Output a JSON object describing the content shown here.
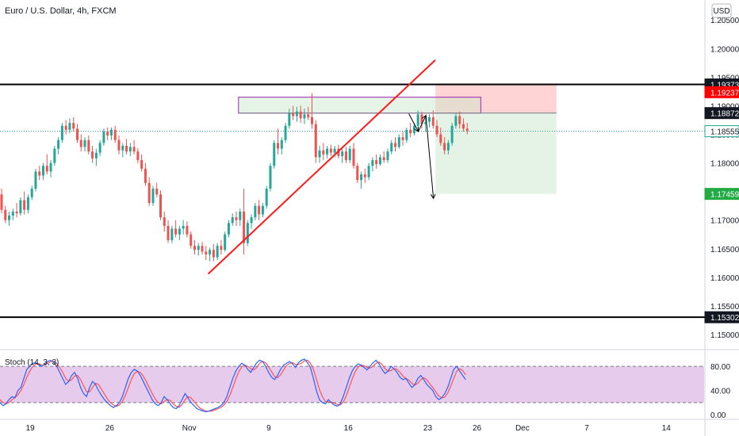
{
  "header": {
    "title": "Euro / U.S. Dollar, 4h, FXCM",
    "currency_button": "USD"
  },
  "chart_data": {
    "type": "candlestick",
    "symbol": "Euro / U.S. Dollar, 4h, FXCM",
    "price_axis": {
      "ylim": [
        1.1475,
        1.2085
      ],
      "ticks": [
        "1.20500",
        "1.20000",
        "1.19500",
        "1.19000",
        "1.18500",
        "1.18000",
        "1.17500",
        "1.17000",
        "1.16500",
        "1.16000",
        "1.15500",
        "1.15000"
      ],
      "tick_values": [
        1.205,
        1.2,
        1.195,
        1.19,
        1.185,
        1.18,
        1.175,
        1.17,
        1.165,
        1.16,
        1.155,
        1.15
      ]
    },
    "x_axis": {
      "ticks": [
        "19",
        "26",
        "Nov",
        "9",
        "16",
        "23",
        "26",
        "Dec",
        "7",
        "14"
      ],
      "tick_index": [
        8,
        29,
        50,
        71,
        92,
        113,
        126,
        138,
        155,
        176
      ],
      "xlim": [
        0,
        186
      ]
    },
    "candles": [
      [
        1.1745,
        1.1755,
        1.1712,
        1.1718
      ],
      [
        1.1718,
        1.1725,
        1.1695,
        1.17
      ],
      [
        1.17,
        1.1715,
        1.169,
        1.1708
      ],
      [
        1.1708,
        1.172,
        1.17,
        1.1715
      ],
      [
        1.1715,
        1.173,
        1.1705,
        1.1712
      ],
      [
        1.1712,
        1.174,
        1.1708,
        1.1735
      ],
      [
        1.1735,
        1.175,
        1.171,
        1.1718
      ],
      [
        1.1718,
        1.1745,
        1.1712,
        1.174
      ],
      [
        1.174,
        1.176,
        1.1735,
        1.1755
      ],
      [
        1.1755,
        1.179,
        1.175,
        1.1785
      ],
      [
        1.1785,
        1.1795,
        1.177,
        1.1778
      ],
      [
        1.1778,
        1.18,
        1.177,
        1.1795
      ],
      [
        1.1795,
        1.1815,
        1.178,
        1.1785
      ],
      [
        1.1785,
        1.1805,
        1.1775,
        1.18
      ],
      [
        1.18,
        1.183,
        1.1795,
        1.1825
      ],
      [
        1.1825,
        1.1845,
        1.1815,
        1.184
      ],
      [
        1.184,
        1.187,
        1.1835,
        1.1865
      ],
      [
        1.1865,
        1.1875,
        1.185,
        1.1858
      ],
      [
        1.1858,
        1.1878,
        1.1852,
        1.187
      ],
      [
        1.187,
        1.188,
        1.1855,
        1.186
      ],
      [
        1.186,
        1.1868,
        1.1835,
        1.184
      ],
      [
        1.184,
        1.185,
        1.182,
        1.1828
      ],
      [
        1.1828,
        1.1845,
        1.182,
        1.184
      ],
      [
        1.184,
        1.1848,
        1.1815,
        1.182
      ],
      [
        1.182,
        1.183,
        1.18,
        1.1808
      ],
      [
        1.1808,
        1.1825,
        1.1795,
        1.1818
      ],
      [
        1.1818,
        1.184,
        1.1812,
        1.1835
      ],
      [
        1.1835,
        1.186,
        1.183,
        1.1855
      ],
      [
        1.1855,
        1.1862,
        1.184,
        1.1848
      ],
      [
        1.1848,
        1.1862,
        1.184,
        1.1858
      ],
      [
        1.1858,
        1.1865,
        1.1835,
        1.184
      ],
      [
        1.184,
        1.1848,
        1.1815,
        1.1822
      ],
      [
        1.1822,
        1.1835,
        1.181,
        1.183
      ],
      [
        1.183,
        1.1842,
        1.1815,
        1.182
      ],
      [
        1.182,
        1.1835,
        1.1812,
        1.1828
      ],
      [
        1.1828,
        1.184,
        1.1815,
        1.182
      ],
      [
        1.182,
        1.1826,
        1.18,
        1.1805
      ],
      [
        1.1805,
        1.1815,
        1.1785,
        1.179
      ],
      [
        1.179,
        1.18,
        1.176,
        1.1765
      ],
      [
        1.1765,
        1.1775,
        1.1725,
        1.173
      ],
      [
        1.173,
        1.176,
        1.1725,
        1.1755
      ],
      [
        1.1755,
        1.1765,
        1.174,
        1.1745
      ],
      [
        1.1745,
        1.1752,
        1.17,
        1.1705
      ],
      [
        1.1705,
        1.1715,
        1.168,
        1.169
      ],
      [
        1.169,
        1.17,
        1.166,
        1.1665
      ],
      [
        1.1665,
        1.169,
        1.166,
        1.1685
      ],
      [
        1.1685,
        1.17,
        1.167,
        1.1675
      ],
      [
        1.1675,
        1.169,
        1.1665,
        1.1685
      ],
      [
        1.1685,
        1.17,
        1.1675,
        1.169
      ],
      [
        1.169,
        1.1698,
        1.167,
        1.1675
      ],
      [
        1.1675,
        1.168,
        1.165,
        1.1655
      ],
      [
        1.1655,
        1.1665,
        1.164,
        1.1648
      ],
      [
        1.1648,
        1.166,
        1.1638,
        1.1655
      ],
      [
        1.1655,
        1.1662,
        1.164,
        1.1645
      ],
      [
        1.1645,
        1.1655,
        1.163,
        1.164
      ],
      [
        1.164,
        1.1652,
        1.1628,
        1.1648
      ],
      [
        1.1648,
        1.1658,
        1.1628,
        1.1635
      ],
      [
        1.1635,
        1.166,
        1.163,
        1.1655
      ],
      [
        1.1655,
        1.1665,
        1.164,
        1.1648
      ],
      [
        1.1648,
        1.168,
        1.1645,
        1.1675
      ],
      [
        1.1675,
        1.17,
        1.167,
        1.1695
      ],
      [
        1.1695,
        1.1712,
        1.169,
        1.1705
      ],
      [
        1.1705,
        1.1715,
        1.169,
        1.17
      ],
      [
        1.17,
        1.172,
        1.169,
        1.1715
      ],
      [
        1.1715,
        1.1755,
        1.164,
        1.166
      ],
      [
        1.166,
        1.17,
        1.1655,
        1.1695
      ],
      [
        1.1695,
        1.171,
        1.1685,
        1.1705
      ],
      [
        1.1705,
        1.173,
        1.17,
        1.1725
      ],
      [
        1.1725,
        1.1735,
        1.17,
        1.171
      ],
      [
        1.171,
        1.173,
        1.1705,
        1.1725
      ],
      [
        1.1725,
        1.176,
        1.172,
        1.1755
      ],
      [
        1.1755,
        1.18,
        1.175,
        1.1795
      ],
      [
        1.1795,
        1.184,
        1.179,
        1.1835
      ],
      [
        1.1835,
        1.186,
        1.1815,
        1.1825
      ],
      [
        1.1825,
        1.1845,
        1.1815,
        1.184
      ],
      [
        1.184,
        1.187,
        1.1835,
        1.1865
      ],
      [
        1.1865,
        1.1895,
        1.186,
        1.1888
      ],
      [
        1.1888,
        1.19,
        1.1875,
        1.1882
      ],
      [
        1.1882,
        1.1898,
        1.1872,
        1.189
      ],
      [
        1.189,
        1.19,
        1.187,
        1.1878
      ],
      [
        1.1878,
        1.1895,
        1.1868,
        1.1885
      ],
      [
        1.1885,
        1.1898,
        1.1875,
        1.188
      ],
      [
        1.188,
        1.1922,
        1.186,
        1.1868
      ],
      [
        1.1868,
        1.1875,
        1.18,
        1.181
      ],
      [
        1.181,
        1.183,
        1.18,
        1.1822
      ],
      [
        1.1822,
        1.1835,
        1.1805,
        1.1815
      ],
      [
        1.1815,
        1.183,
        1.1808,
        1.1825
      ],
      [
        1.1825,
        1.1832,
        1.1812,
        1.1818
      ],
      [
        1.1818,
        1.183,
        1.181,
        1.1825
      ],
      [
        1.1825,
        1.1832,
        1.1808,
        1.1812
      ],
      [
        1.1812,
        1.1825,
        1.18,
        1.182
      ],
      [
        1.182,
        1.1828,
        1.18,
        1.1805
      ],
      [
        1.1805,
        1.183,
        1.18,
        1.1825
      ],
      [
        1.1825,
        1.1835,
        1.179,
        1.1795
      ],
      [
        1.1795,
        1.18,
        1.1765,
        1.177
      ],
      [
        1.177,
        1.1785,
        1.1755,
        1.178
      ],
      [
        1.178,
        1.179,
        1.1765,
        1.1775
      ],
      [
        1.1775,
        1.18,
        1.177,
        1.1795
      ],
      [
        1.1795,
        1.181,
        1.1785,
        1.1805
      ],
      [
        1.1805,
        1.1815,
        1.179,
        1.1798
      ],
      [
        1.1798,
        1.1815,
        1.1795,
        1.181
      ],
      [
        1.181,
        1.182,
        1.18,
        1.1805
      ],
      [
        1.1805,
        1.1825,
        1.18,
        1.182
      ],
      [
        1.182,
        1.184,
        1.1815,
        1.1835
      ],
      [
        1.1835,
        1.1845,
        1.182,
        1.1828
      ],
      [
        1.1828,
        1.185,
        1.1825,
        1.1845
      ],
      [
        1.1845,
        1.1855,
        1.183,
        1.184
      ],
      [
        1.184,
        1.1862,
        1.1835,
        1.1858
      ],
      [
        1.1858,
        1.187,
        1.1845,
        1.1852
      ],
      [
        1.1852,
        1.187,
        1.1848,
        1.1865
      ],
      [
        1.1865,
        1.1892,
        1.186,
        1.1885
      ],
      [
        1.1885,
        1.189,
        1.186,
        1.1868
      ],
      [
        1.1868,
        1.188,
        1.1855,
        1.1872
      ],
      [
        1.1872,
        1.1885,
        1.1862,
        1.188
      ],
      [
        1.188,
        1.1892,
        1.186,
        1.1865
      ],
      [
        1.1865,
        1.1875,
        1.1845,
        1.185
      ],
      [
        1.185,
        1.1862,
        1.183,
        1.1835
      ],
      [
        1.1835,
        1.1845,
        1.1815,
        1.1822
      ],
      [
        1.1822,
        1.184,
        1.1815,
        1.1835
      ],
      [
        1.1835,
        1.187,
        1.183,
        1.1865
      ],
      [
        1.1865,
        1.1888,
        1.186,
        1.1882
      ],
      [
        1.1882,
        1.189,
        1.186,
        1.1868
      ],
      [
        1.1868,
        1.1878,
        1.1855,
        1.186
      ],
      [
        1.186,
        1.187,
        1.185,
        1.1856
      ]
    ],
    "stochastic": {
      "label": "Stoch (14, 3, 3)",
      "axis_ticks": [
        "80.00",
        "40.00",
        "0.00"
      ],
      "axis_values": [
        80,
        40,
        0
      ],
      "ylim": [
        -5,
        105
      ],
      "bands": [
        80,
        20
      ],
      "k": [
        20,
        15,
        18,
        25,
        30,
        28,
        40,
        45,
        60,
        75,
        80,
        85,
        86,
        82,
        80,
        84,
        88,
        90,
        86,
        80,
        70,
        60,
        50,
        55,
        65,
        70,
        60,
        45,
        35,
        30,
        45,
        55,
        50,
        40,
        32,
        25,
        20,
        15,
        12,
        15,
        20,
        30,
        45,
        60,
        70,
        75,
        72,
        65,
        55,
        45,
        35,
        25,
        18,
        15,
        20,
        30,
        25,
        18,
        12,
        10,
        15,
        25,
        35,
        28,
        20,
        15,
        10,
        8,
        6,
        5,
        6,
        8,
        10,
        12,
        15,
        20,
        30,
        45,
        60,
        72,
        80,
        85,
        82,
        75,
        70,
        78,
        86,
        90,
        88,
        80,
        70,
        62,
        58,
        65,
        75,
        82,
        85,
        88,
        84,
        78,
        86,
        90,
        92,
        86,
        78,
        60,
        40,
        25,
        20,
        18,
        25,
        20,
        16,
        14,
        18,
        30,
        45,
        60,
        72,
        80,
        84,
        82,
        78,
        74,
        80,
        86,
        90,
        84,
        75,
        68,
        72,
        80,
        76,
        70,
        62,
        58,
        60,
        52,
        45,
        50,
        60,
        65,
        58,
        50,
        45,
        40,
        30,
        25,
        28,
        35,
        45,
        60,
        75,
        80,
        72,
        65,
        58
      ],
      "d": [
        25,
        20,
        18,
        20,
        25,
        28,
        33,
        40,
        50,
        62,
        72,
        80,
        84,
        84,
        82,
        82,
        85,
        88,
        88,
        85,
        78,
        70,
        60,
        55,
        58,
        64,
        65,
        58,
        48,
        38,
        38,
        45,
        52,
        50,
        42,
        34,
        26,
        20,
        16,
        14,
        16,
        22,
        32,
        45,
        58,
        68,
        72,
        70,
        64,
        55,
        45,
        35,
        26,
        20,
        18,
        22,
        25,
        24,
        18,
        14,
        12,
        17,
        25,
        30,
        28,
        22,
        16,
        11,
        8,
        6,
        6,
        6,
        8,
        10,
        12,
        16,
        22,
        32,
        45,
        59,
        71,
        79,
        82,
        80,
        76,
        74,
        78,
        85,
        88,
        86,
        79,
        71,
        63,
        61,
        66,
        74,
        81,
        85,
        86,
        83,
        83,
        85,
        89,
        90,
        85,
        75,
        59,
        42,
        30,
        22,
        21,
        21,
        19,
        17,
        16,
        21,
        31,
        45,
        59,
        71,
        79,
        82,
        81,
        78,
        77,
        80,
        85,
        87,
        83,
        76,
        72,
        73,
        76,
        75,
        70,
        64,
        60,
        57,
        52,
        49,
        52,
        58,
        61,
        58,
        51,
        45,
        38,
        31,
        28,
        29,
        36,
        47,
        60,
        72,
        76,
        73,
        66
      ]
    }
  },
  "annotations": {
    "levels": [
      {
        "value": 1.19373,
        "label": "1.19373",
        "bg": "#131722",
        "fg": "#ffffff"
      },
      {
        "value": 1.19237,
        "label": "1.19237",
        "bg": "#ff0000",
        "fg": "#ffffff"
      },
      {
        "value": 1.18872,
        "label": "1.18872",
        "bg": "#131722",
        "fg": "#ffffff"
      },
      {
        "value": 1.18555,
        "label": "1.18555",
        "bg": "#ffffff",
        "fg": "#131722",
        "border": "#26a69a"
      },
      {
        "value": 1.17459,
        "label": "1.17459",
        "bg": "#22ab45",
        "fg": "#ffffff"
      },
      {
        "value": 1.15302,
        "label": "1.15302",
        "bg": "#131722",
        "fg": "#ffffff"
      }
    ],
    "colors": {
      "up": "#26a69a",
      "down": "#ef5350",
      "trendline": "#ff1a1a",
      "box": "#9c27b0",
      "stop": "#ff5252",
      "target": "#4caf50",
      "k_line": "#2962ff",
      "d_line": "#ff5252",
      "stoch_fill": "#e1bee7"
    }
  }
}
